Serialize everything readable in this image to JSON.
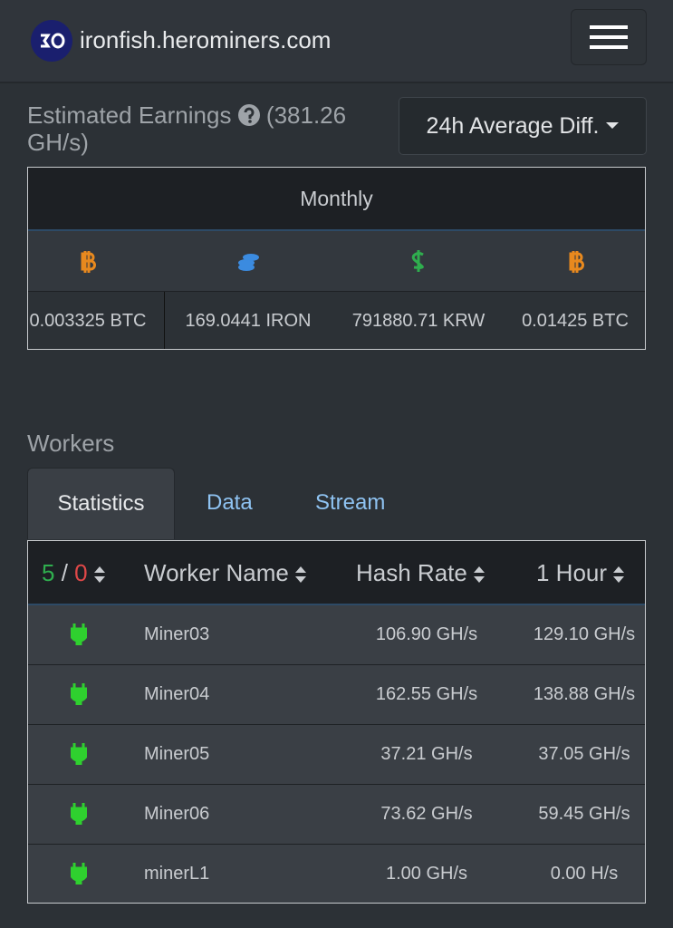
{
  "header": {
    "site": "ironfish.herominers.com"
  },
  "earnings": {
    "title": "Estimated Earnings",
    "hashrate": "(381.26 GH/s)",
    "dropdown": "24h Average Diff.",
    "period": "Monthly",
    "values": [
      "0.003325 BTC",
      "169.0441 IRON",
      "791880.71 KRW",
      "0.01425 BTC"
    ]
  },
  "workers": {
    "title": "Workers",
    "tabs": [
      "Statistics",
      "Data",
      "Stream"
    ],
    "online": "5",
    "separator": "/",
    "offline": "0",
    "columns": [
      "Worker Name",
      "Hash Rate",
      "1 Hour"
    ],
    "rows": [
      [
        "Miner03",
        "106.90 GH/s",
        "129.10 GH/s"
      ],
      [
        "Miner04",
        "162.55 GH/s",
        "138.88 GH/s"
      ],
      [
        "Miner05",
        "37.21 GH/s",
        "37.05 GH/s"
      ],
      [
        "Miner06",
        "73.62 GH/s",
        "59.45 GH/s"
      ],
      [
        "minerL1",
        "1.00 GH/s",
        "0.00 H/s"
      ]
    ]
  }
}
